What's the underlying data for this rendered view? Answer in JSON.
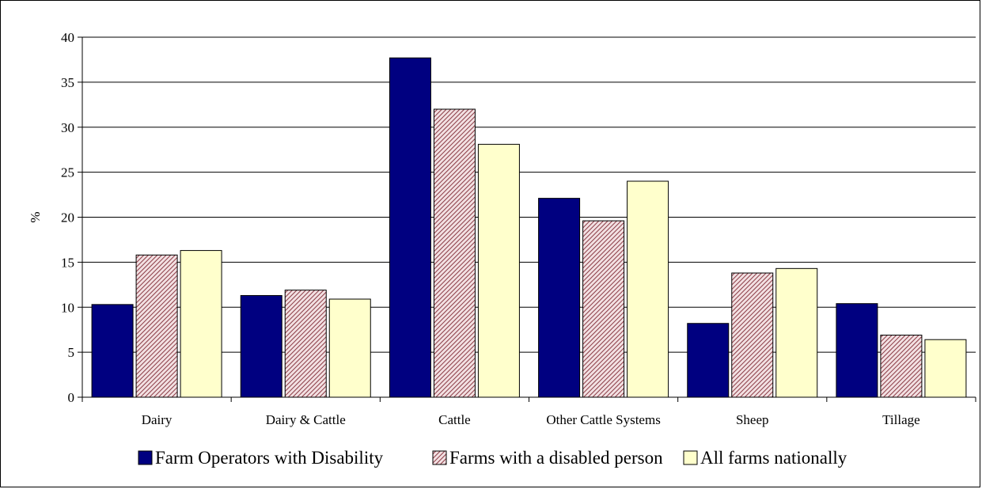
{
  "chart_data": {
    "type": "bar",
    "title": "",
    "xlabel": "",
    "ylabel": "%",
    "ylim": [
      0,
      40
    ],
    "yticks": [
      0,
      5,
      10,
      15,
      20,
      25,
      30,
      35,
      40
    ],
    "grid": true,
    "legend_position": "bottom",
    "categories": [
      "Dairy",
      "Dairy & Cattle",
      "Cattle",
      "Other Cattle Systems",
      "Sheep",
      "Tillage"
    ],
    "series": [
      {
        "name": "Farm Operators with Disability",
        "color": "#000080",
        "pattern": "solid",
        "values": [
          10.3,
          11.3,
          37.7,
          22.1,
          8.2,
          10.4
        ]
      },
      {
        "name": "Farms with a disabled person",
        "color": "#c8989c",
        "pattern": "diagonal-hatch",
        "values": [
          15.8,
          11.9,
          32.0,
          19.6,
          13.8,
          6.9
        ]
      },
      {
        "name": "All farms nationally",
        "color": "#ffffcc",
        "pattern": "solid",
        "values": [
          16.3,
          10.9,
          28.1,
          24.0,
          14.3,
          6.4
        ]
      }
    ]
  }
}
